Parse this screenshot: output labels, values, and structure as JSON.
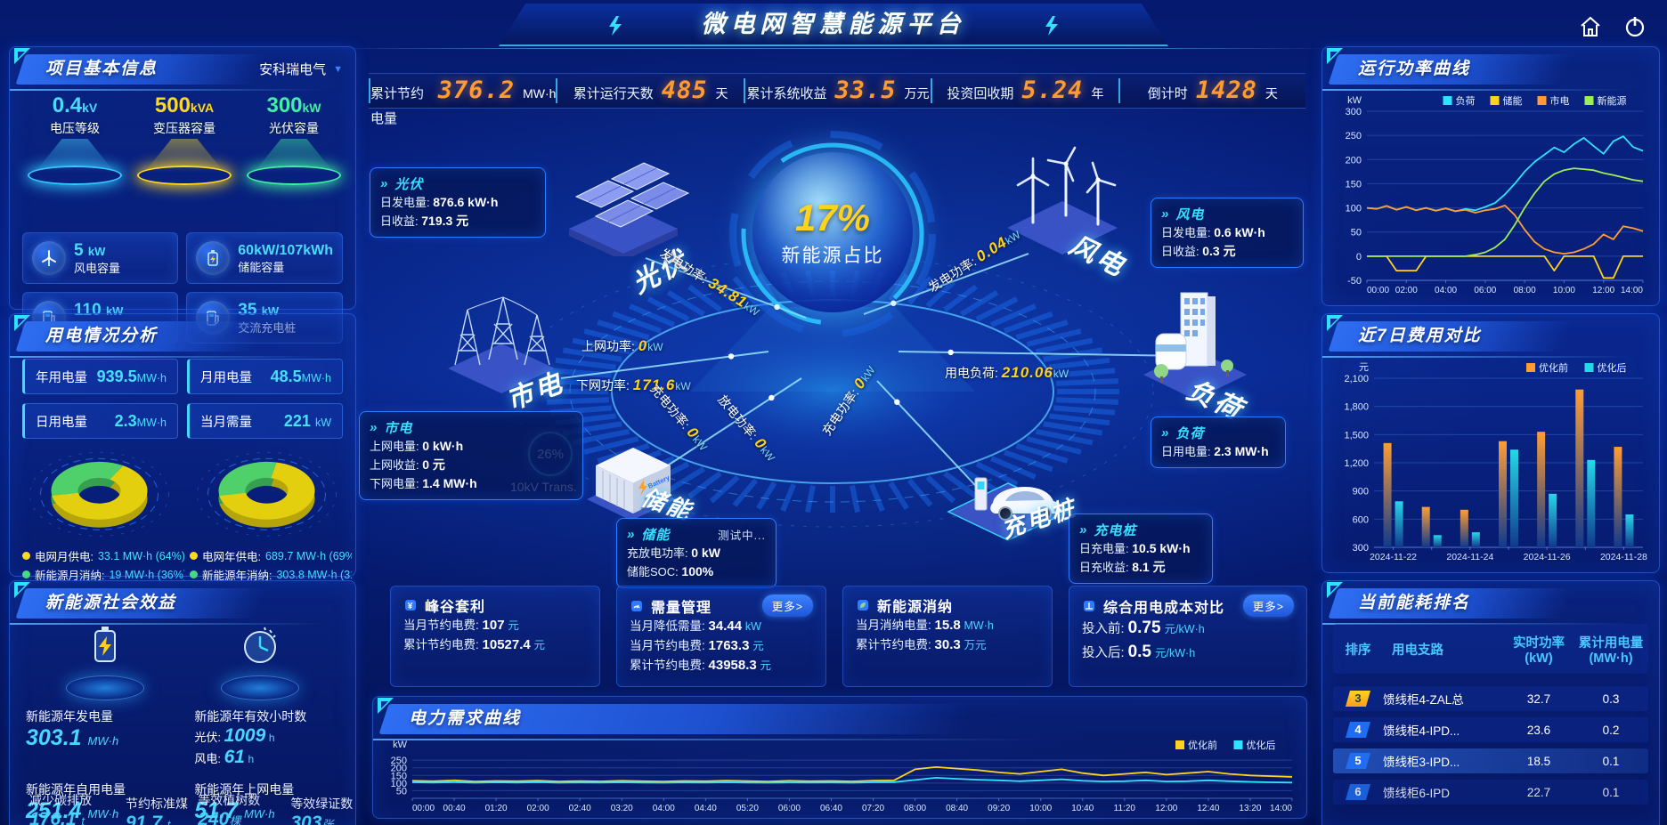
{
  "header": {
    "title": "微电网智慧能源平台"
  },
  "icons": {
    "dropdown_arrow": "▼"
  },
  "stats_bar": {
    "items": [
      {
        "label": "累计节约电量",
        "value": "376.2",
        "unit": "MW·h"
      },
      {
        "label": "累计运行天数",
        "value": "485",
        "unit": "天"
      },
      {
        "label": "累计系统收益",
        "value": "33.5",
        "unit": "万元"
      },
      {
        "label": "投资回收期",
        "value": "5.24",
        "unit": "年"
      },
      {
        "label": "倒计时",
        "value": "1428",
        "unit": "天"
      }
    ]
  },
  "project": {
    "title": "项目基本信息",
    "company": "安科瑞电气",
    "cones": [
      {
        "value": "0.4",
        "unit": "kV",
        "label": "电压等级"
      },
      {
        "value": "500",
        "unit": "kVA",
        "label": "变压器容量"
      },
      {
        "value": "300",
        "unit": "kW",
        "label": "光伏容量"
      }
    ],
    "cards": [
      {
        "value": "5",
        "unit": "kW",
        "label": "风电容量"
      },
      {
        "value": "60kW/107kWh",
        "unit": "",
        "label": "储能容量"
      },
      {
        "value": "110",
        "unit": "kW",
        "label": "直流充电桩"
      },
      {
        "value": "35",
        "unit": "kW",
        "label": "交流充电桩"
      }
    ]
  },
  "usage": {
    "title": "用电情况分析",
    "metrics": [
      {
        "label": "年用电量",
        "value": "939.5",
        "unit": "MW·h"
      },
      {
        "label": "月用电量",
        "value": "48.5",
        "unit": "MW·h"
      },
      {
        "label": "日用电量",
        "value": "2.3",
        "unit": "MW·h"
      },
      {
        "label": "当月需量",
        "value": "221",
        "unit": "kW"
      }
    ],
    "legend": [
      {
        "color": "#ffd81f",
        "label": "电网月供电:",
        "value": "33.1 MW·h (64%)"
      },
      {
        "color": "#ffd81f",
        "label": "电网年供电:",
        "value": "689.7 MW·h (69%)"
      },
      {
        "color": "#49e07c",
        "label": "新能源月消纳:",
        "value": "19 MW·h (36%)"
      },
      {
        "color": "#49e07c",
        "label": "新能源年消纳:",
        "value": "303.8 MW·h (31%)"
      }
    ]
  },
  "benefit": {
    "title": "新能源社会效益",
    "gen_label": "新能源年发电量",
    "gen_value": "303.1",
    "gen_unit": "MW·h",
    "hours_label": "新能源年有效小时数",
    "pv_label": "光伏:",
    "pv_value": "1009",
    "pv_unit": "h",
    "wind_label": "风电:",
    "wind_value": "61",
    "wind_unit": "h",
    "self_label": "新能源年自用电量",
    "self_value": "251.4",
    "self_unit": "MW·h",
    "co2_label": "减少碳排放",
    "co2_value": "176.1",
    "co2_unit": "t",
    "coal_label": "节约标准煤",
    "coal_value": "91.7",
    "coal_unit": "t",
    "grid_label": "新能源年上网电量",
    "grid_value": "51.7",
    "grid_unit": "MW·h",
    "tree_label": "等效植树数",
    "tree_value": "240",
    "tree_unit": "棵",
    "cert_label": "等效绿证数",
    "cert_value": "303",
    "cert_unit": "张"
  },
  "diagram": {
    "center_value": "17%",
    "center_label": "新能源占比",
    "transformer_value": "26%",
    "transformer_label": "10kV Trans.",
    "nodes": {
      "pv": "光伏",
      "wind": "风电",
      "grid": "市电",
      "load": "负荷",
      "storage": "储能",
      "charger": "充电桩"
    },
    "boxes": {
      "pv": {
        "title": "光伏",
        "r1l": "日发电量:",
        "r1v": "876.6 kW·h",
        "r2l": "日收益:",
        "r2v": "719.3 元"
      },
      "wind": {
        "title": "风电",
        "r1l": "日发电量:",
        "r1v": "0.6 kW·h",
        "r2l": "日收益:",
        "r2v": "0.3 元"
      },
      "grid": {
        "title": "市电",
        "r1l": "上网电量:",
        "r1v": "0 kW·h",
        "r2l": "上网收益:",
        "r2v": "0 元",
        "r3l": "下网电量:",
        "r3v": "1.4 MW·h"
      },
      "storage": {
        "title": "储能",
        "status": "测试中...",
        "r1l": "充放电功率:",
        "r1v": "0 kW",
        "r2l": "储能SOC:",
        "r2v": "100%"
      },
      "charger": {
        "title": "充电桩",
        "r1l": "日充电量:",
        "r1v": "10.5 kW·h",
        "r2l": "日充收益:",
        "r2v": "8.1 元"
      },
      "load": {
        "title": "负荷",
        "r1l": "日用电量:",
        "r1v": "2.3 MW·h"
      }
    },
    "flows": {
      "pv_gen": {
        "label": "发电功率:",
        "value": "34.81",
        "unit": "kW"
      },
      "wind_gen": {
        "label": "发电功率:",
        "value": "0.04",
        "unit": "kW"
      },
      "to_grid": {
        "label": "上网功率:",
        "value": "0",
        "unit": "kW"
      },
      "from_grid": {
        "label": "下网功率:",
        "value": "171.6",
        "unit": "kW"
      },
      "load_power": {
        "label": "用电负荷:",
        "value": "210.06",
        "unit": "kW"
      },
      "st_charge": {
        "label": "充电功率:",
        "value": "0",
        "unit": "kW"
      },
      "st_discharge": {
        "label": "放电功率:",
        "value": "0",
        "unit": "kW"
      },
      "ev_charge": {
        "label": "充电功率:",
        "value": "0",
        "unit": "kW"
      }
    }
  },
  "cards": {
    "arbitrage": {
      "title": "峰谷套利",
      "r1l": "当月节约电费:",
      "r1v": "107",
      "r1u": "元",
      "r2l": "累计节约电费:",
      "r2v": "10527.4",
      "r2u": "元"
    },
    "demand": {
      "title": "需量管理",
      "more": "更多>",
      "r1l": "当月降低需量:",
      "r1v": "34.44",
      "r1u": "kW",
      "r2l": "当月节约电费:",
      "r2v": "1763.3",
      "r2u": "元",
      "r3l": "累计节约电费:",
      "r3v": "43958.3",
      "r3u": "元"
    },
    "consume": {
      "title": "新能源消纳",
      "r1l": "当月消纳电量:",
      "r1v": "15.8",
      "r1u": "MW·h",
      "r2l": "累计节约电费:",
      "r2v": "30.3",
      "r2u": "万元"
    },
    "cost": {
      "title": "综合用电成本对比",
      "more": "更多>",
      "r1l": "投入前:",
      "r1v": "0.75",
      "r1u": "元/kW·h",
      "r2l": "投入后:",
      "r2v": "0.5",
      "r2u": "元/kW·h"
    }
  },
  "panels": {
    "run_power_title": "运行功率曲线",
    "cost_title": "近7日费用对比",
    "rank_title": "当前能耗排名",
    "demand_title": "电力需求曲线"
  },
  "ranking": {
    "columns": [
      "排序",
      "用电支路",
      "实时功率",
      "(kW)",
      "累计用电量",
      "(MW·h)"
    ],
    "rows": [
      {
        "rank": "3",
        "name": "馈线柜4-ZAL总",
        "power": "32.7",
        "energy": "0.3"
      },
      {
        "rank": "4",
        "name": "馈线柜4-IPD...",
        "power": "23.6",
        "energy": "0.2"
      },
      {
        "rank": "5",
        "name": "馈线柜3-IPD...",
        "power": "18.5",
        "energy": "0.1"
      },
      {
        "rank": "6",
        "name": "馈线柜6-IPD",
        "power": "22.7",
        "energy": "0.1"
      }
    ]
  },
  "chart_data": [
    {
      "id": "run-power",
      "type": "line",
      "title": "运行功率曲线",
      "ylabel": "kW",
      "ylim": [
        -50,
        300
      ],
      "yticks": [
        300,
        250,
        200,
        150,
        100,
        50,
        0,
        -50
      ],
      "xlabels": [
        "00:00",
        "02:00",
        "04:00",
        "06:00",
        "08:00",
        "10:00",
        "12:00",
        "14:00"
      ],
      "grid": true,
      "legend_position": "top-right",
      "series": [
        {
          "name": "负荷",
          "color": "#2fe3ff",
          "values": [
            100,
            98,
            104,
            96,
            102,
            95,
            100,
            94,
            99,
            93,
            98,
            95,
            102,
            110,
            128,
            150,
            175,
            195,
            210,
            225,
            215,
            232,
            245,
            228,
            212,
            238,
            248,
            226,
            218
          ]
        },
        {
          "name": "储能",
          "color": "#ffd21f",
          "values": [
            0,
            0,
            0,
            -30,
            -30,
            -30,
            0,
            0,
            0,
            0,
            0,
            0,
            0,
            0,
            0,
            0,
            0,
            0,
            0,
            -30,
            0,
            0,
            0,
            0,
            -45,
            -45,
            0,
            0,
            0
          ]
        },
        {
          "name": "市电",
          "color": "#ff9d33",
          "values": [
            100,
            98,
            104,
            96,
            102,
            95,
            100,
            94,
            99,
            93,
            96,
            90,
            95,
            98,
            105,
            85,
            55,
            30,
            15,
            8,
            5,
            8,
            15,
            25,
            45,
            35,
            62,
            58,
            52
          ]
        },
        {
          "name": "新能源",
          "color": "#9dee4f",
          "values": [
            0,
            0,
            0,
            0,
            0,
            0,
            0,
            0,
            0,
            0,
            0,
            3,
            8,
            18,
            35,
            65,
            100,
            130,
            155,
            170,
            178,
            182,
            180,
            178,
            172,
            168,
            163,
            158,
            155
          ]
        }
      ]
    },
    {
      "id": "cost-compare",
      "type": "bar",
      "title": "近7日费用对比",
      "ylabel": "元",
      "ylim": [
        300,
        2100
      ],
      "yticks": [
        2100,
        1800,
        1500,
        1200,
        900,
        600,
        300
      ],
      "yticklabels": [
        "2,100",
        "1,800",
        "1,500",
        "1,200",
        "900",
        "600",
        "300"
      ],
      "categories": [
        "2024-11-22",
        "2024-11-23",
        "2024-11-24",
        "2024-11-25",
        "2024-11-26",
        "2024-11-27",
        "2024-11-28"
      ],
      "xlabels_shown": [
        "2024-11-22",
        "2024-11-24",
        "2024-11-26",
        "2024-11-28"
      ],
      "grid": true,
      "legend_position": "top-right",
      "series": [
        {
          "name": "优化前",
          "color": "#ff9d33",
          "values": [
            1410,
            730,
            700,
            1430,
            1530,
            1980,
            1370
          ]
        },
        {
          "name": "优化后",
          "color": "#27d8e8",
          "values": [
            790,
            430,
            460,
            1340,
            870,
            1230,
            650
          ]
        }
      ]
    },
    {
      "id": "demand-curve",
      "type": "line",
      "title": "电力需求曲线",
      "ylabel": "kW",
      "ylim": [
        0,
        280
      ],
      "yticks": [
        250,
        200,
        150,
        100,
        50
      ],
      "xlabels": [
        "00:00",
        "00:40",
        "01:20",
        "02:00",
        "02:40",
        "03:20",
        "04:00",
        "04:40",
        "05:20",
        "06:00",
        "06:40",
        "07:20",
        "08:00",
        "08:40",
        "09:20",
        "10:00",
        "10:40",
        "11:20",
        "12:00",
        "12:40",
        "13:20",
        "14:00"
      ],
      "grid": true,
      "legend_position": "top-right",
      "series": [
        {
          "name": "优化前",
          "color": "#ffd21f",
          "values": [
            115,
            112,
            118,
            110,
            114,
            112,
            116,
            110,
            113,
            111,
            115,
            112,
            110,
            114,
            112,
            116,
            113,
            110,
            115,
            112,
            114,
            111,
            116,
            118,
            190,
            205,
            195,
            185,
            170,
            160,
            175,
            190,
            165,
            150,
            160,
            170,
            155,
            165,
            175,
            160,
            150,
            145,
            140
          ]
        },
        {
          "name": "优化后",
          "color": "#2fe3ff",
          "values": [
            105,
            103,
            106,
            102,
            105,
            103,
            106,
            102,
            104,
            103,
            105,
            103,
            102,
            104,
            103,
            105,
            103,
            102,
            104,
            103,
            104,
            102,
            105,
            106,
            120,
            135,
            128,
            122,
            118,
            112,
            118,
            125,
            115,
            110,
            112,
            118,
            110,
            112,
            118,
            112,
            108,
            105,
            103
          ]
        }
      ]
    },
    {
      "id": "donut-month",
      "type": "donut",
      "labels": [
        "电网月供电",
        "新能源月消纳"
      ],
      "values": [
        64,
        36
      ],
      "colors": [
        "#e3cf0e",
        "#4fd06a"
      ]
    },
    {
      "id": "donut-year",
      "type": "donut",
      "labels": [
        "电网年供电",
        "新能源年消纳"
      ],
      "values": [
        69,
        31
      ],
      "colors": [
        "#e3cf0e",
        "#4fd06a"
      ]
    }
  ]
}
